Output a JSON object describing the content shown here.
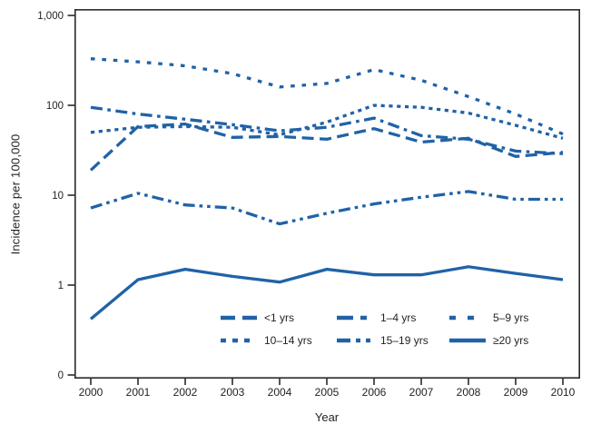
{
  "colors": {
    "line_blue": "#2062A7",
    "axis": "#2B2A29",
    "text": "#231F20",
    "background": "#FFFFFF"
  },
  "chart_data": {
    "type": "line",
    "xlabel": "Year",
    "ylabel": "Incidence per 100,000",
    "x": [
      2000,
      2001,
      2002,
      2003,
      2004,
      2005,
      2006,
      2007,
      2008,
      2009,
      2010
    ],
    "x_tick_labels": [
      "2000",
      "2001",
      "2002",
      "2003",
      "2004",
      "2005",
      "2006",
      "2007",
      "2008",
      "2009",
      "2010"
    ],
    "y_scale": "log10",
    "y_ticks": [
      {
        "label": "1,000",
        "value": 1000
      },
      {
        "label": "100",
        "value": 100
      },
      {
        "label": "10",
        "value": 10
      },
      {
        "label": "1",
        "value": 1
      },
      {
        "label": "0",
        "value": 0
      }
    ],
    "grid": false,
    "legend_position": "inside-bottom-center",
    "line_color": "#2062A7",
    "series": [
      {
        "name": "<1 yrs",
        "dash": "long-dash",
        "values": [
          19,
          58,
          62,
          44,
          45,
          42,
          55,
          39,
          43,
          27,
          30
        ]
      },
      {
        "name": "1–4 yrs",
        "dash": "dash-dot",
        "values": [
          95,
          80,
          70,
          61,
          52,
          57,
          72,
          46,
          42,
          31,
          29
        ]
      },
      {
        "name": "5–9 yrs",
        "dash": "dot-sparse",
        "values": [
          330,
          305,
          275,
          225,
          160,
          175,
          250,
          190,
          125,
          80,
          48
        ]
      },
      {
        "name": "10–14 yrs",
        "dash": "dot-dense",
        "values": [
          50,
          57,
          58,
          57,
          47,
          65,
          100,
          95,
          82,
          60,
          43
        ]
      },
      {
        "name": "15–19 yrs",
        "dash": "dash-dot-dot",
        "values": [
          7.2,
          10.5,
          7.8,
          7.2,
          4.8,
          6.3,
          8,
          9.5,
          11,
          9,
          9
        ]
      },
      {
        "name": "≥20 yrs",
        "dash": "solid",
        "values": [
          0.42,
          1.15,
          1.5,
          1.25,
          1.08,
          1.5,
          1.3,
          1.3,
          1.6,
          1.35,
          1.15
        ]
      }
    ]
  },
  "legend": {
    "order": [
      "<1 yrs",
      "1–4 yrs",
      "5–9 yrs",
      "10–14 yrs",
      "15–19 yrs",
      "≥20 yrs"
    ]
  }
}
